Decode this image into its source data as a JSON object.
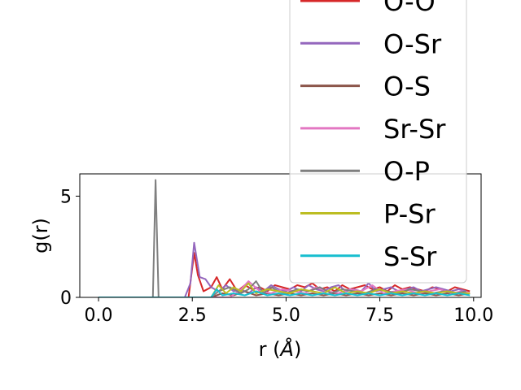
{
  "chart_data": {
    "type": "line",
    "xlabel_prefix": "r (",
    "xlabel_unit": "Å",
    "xlabel_suffix": ")",
    "ylabel": "g(r)",
    "xlim": [
      -0.5,
      10.2
    ],
    "ylim": [
      0,
      6.1
    ],
    "xticks": [
      0.0,
      2.5,
      5.0,
      7.5,
      10.0
    ],
    "xtick_labels": [
      "0.0",
      "2.5",
      "5.0",
      "7.5",
      "10.0"
    ],
    "yticks": [
      0,
      5
    ],
    "ytick_labels": [
      "0",
      "5"
    ],
    "grid": false,
    "legend_position": "upper-right",
    "series": [
      {
        "name": "O-O",
        "color": "#d62728",
        "x": [
          0,
          2.4,
          2.55,
          2.65,
          2.8,
          3.0,
          3.15,
          3.3,
          3.5,
          3.7,
          3.9,
          4.1,
          4.3,
          4.5,
          4.7,
          4.9,
          5.1,
          5.3,
          5.5,
          5.7,
          5.9,
          6.1,
          6.3,
          6.5,
          6.7,
          6.9,
          7.1,
          7.3,
          7.5,
          7.7,
          7.9,
          8.1,
          8.3,
          8.5,
          8.7,
          8.9,
          9.1,
          9.3,
          9.5,
          9.7,
          9.9
        ],
        "values": [
          0,
          0,
          2.2,
          1.1,
          0.3,
          0.5,
          1.0,
          0.4,
          0.9,
          0.3,
          0.6,
          0.4,
          0.5,
          0.3,
          0.6,
          0.5,
          0.4,
          0.6,
          0.5,
          0.7,
          0.4,
          0.5,
          0.3,
          0.6,
          0.4,
          0.5,
          0.6,
          0.4,
          0.5,
          0.3,
          0.6,
          0.4,
          0.5,
          0.4,
          0.3,
          0.5,
          0.4,
          0.3,
          0.5,
          0.4,
          0.3
        ]
      },
      {
        "name": "O-Sr",
        "color": "#9467bd",
        "x": [
          0,
          2.3,
          2.45,
          2.55,
          2.7,
          2.85,
          3.0,
          3.2,
          3.4,
          3.6,
          3.8,
          4.0,
          4.2,
          4.4,
          4.6,
          4.8,
          5.0,
          5.2,
          5.4,
          5.6,
          5.8,
          6.0,
          6.2,
          6.4,
          6.6,
          6.8,
          7.0,
          7.2,
          7.4,
          7.6,
          7.8,
          8.0,
          8.2,
          8.4,
          8.6,
          8.8,
          9.0,
          9.2,
          9.4,
          9.6,
          9.8
        ],
        "values": [
          0,
          0,
          0.7,
          2.7,
          1.0,
          0.9,
          0.5,
          0.3,
          0.6,
          0.3,
          0.4,
          0.2,
          0.5,
          0.3,
          0.6,
          0.4,
          0.3,
          0.5,
          0.3,
          0.6,
          0.4,
          0.3,
          0.5,
          0.6,
          0.3,
          0.4,
          0.3,
          0.7,
          0.3,
          0.4,
          0.5,
          0.3,
          0.4,
          0.5,
          0.3,
          0.4,
          0.5,
          0.4,
          0.3,
          0.4,
          0.3
        ]
      },
      {
        "name": "O-S",
        "color": "#8c564b",
        "x": [
          0,
          3.0,
          3.3,
          3.6,
          3.9,
          4.2,
          4.5,
          4.8,
          5.1,
          5.4,
          5.7,
          6.0,
          6.3,
          6.6,
          6.9,
          7.2,
          7.5,
          7.8,
          8.1,
          8.4,
          8.7,
          9.0,
          9.3,
          9.6,
          9.9
        ],
        "values": [
          0,
          0,
          0.2,
          0.1,
          0.3,
          0.1,
          0.2,
          0.1,
          0.2,
          0.1,
          0.2,
          0.1,
          0.2,
          0.1,
          0.2,
          0.1,
          0.2,
          0.1,
          0.2,
          0.1,
          0.2,
          0.1,
          0.2,
          0.1,
          0.2
        ]
      },
      {
        "name": "Sr-Sr",
        "color": "#e377c2",
        "x": [
          0,
          3.5,
          3.8,
          4.0,
          4.3,
          4.6,
          4.9,
          5.2,
          5.5,
          5.8,
          6.1,
          6.4,
          6.7,
          7.0,
          7.3,
          7.6,
          7.9,
          8.2,
          8.5,
          8.8,
          9.1,
          9.4,
          9.7,
          9.9
        ],
        "values": [
          0,
          0,
          0.4,
          0.8,
          0.3,
          0.2,
          0.4,
          0.3,
          0.2,
          0.5,
          0.3,
          0.2,
          0.4,
          0.3,
          0.6,
          0.2,
          0.3,
          0.4,
          0.2,
          0.3,
          0.4,
          0.2,
          0.3,
          0.2
        ]
      },
      {
        "name": "O-P",
        "color": "#7f7f7f",
        "x": [
          0,
          1.45,
          1.52,
          1.6,
          3.0,
          3.2,
          3.5,
          3.8,
          4.0,
          4.2,
          4.4,
          4.6,
          4.8,
          5.0,
          5.3,
          5.6,
          5.9,
          6.2,
          6.5,
          6.8,
          7.1,
          7.4,
          7.7,
          8.0,
          8.3,
          8.6,
          8.9,
          9.2,
          9.5,
          9.8
        ],
        "values": [
          0,
          0,
          5.8,
          0,
          0,
          0.3,
          0.5,
          0.2,
          0.4,
          0.8,
          0.2,
          0.5,
          0.3,
          0.2,
          0.4,
          0.3,
          0.5,
          0.2,
          0.4,
          0.3,
          0.2,
          0.4,
          0.3,
          0.2,
          0.4,
          0.3,
          0.2,
          0.3,
          0.2,
          0.3
        ]
      },
      {
        "name": "P-Sr",
        "color": "#bcbd22",
        "x": [
          0,
          3.0,
          3.2,
          3.4,
          3.6,
          3.8,
          4.0,
          4.2,
          4.5,
          4.8,
          5.1,
          5.4,
          5.7,
          6.0,
          6.3,
          6.6,
          6.9,
          7.2,
          7.5,
          7.8,
          8.1,
          8.4,
          8.7,
          9.0,
          9.3,
          9.6,
          9.9
        ],
        "values": [
          0,
          0,
          0.6,
          0.2,
          0.5,
          0.3,
          0.7,
          0.2,
          0.4,
          0.3,
          0.2,
          0.4,
          0.3,
          0.2,
          0.5,
          0.2,
          0.3,
          0.2,
          0.4,
          0.2,
          0.3,
          0.2,
          0.3,
          0.2,
          0.3,
          0.2,
          0.2
        ]
      },
      {
        "name": "S-Sr",
        "color": "#17becf",
        "x": [
          0,
          3.0,
          3.15,
          3.3,
          3.6,
          3.9,
          4.2,
          4.5,
          4.8,
          5.1,
          5.4,
          5.7,
          6.0,
          6.3,
          6.6,
          6.9,
          7.2,
          7.5,
          7.8,
          8.1,
          8.4,
          8.7,
          9.0,
          9.3,
          9.6,
          9.9
        ],
        "values": [
          0,
          0,
          0.4,
          0.1,
          0.2,
          0.1,
          0.3,
          0.1,
          0.2,
          0.1,
          0.2,
          0.1,
          0.2,
          0.1,
          0.2,
          0.1,
          0.2,
          0.1,
          0.2,
          0.1,
          0.2,
          0.1,
          0.2,
          0.1,
          0.2,
          0.1
        ]
      }
    ]
  }
}
